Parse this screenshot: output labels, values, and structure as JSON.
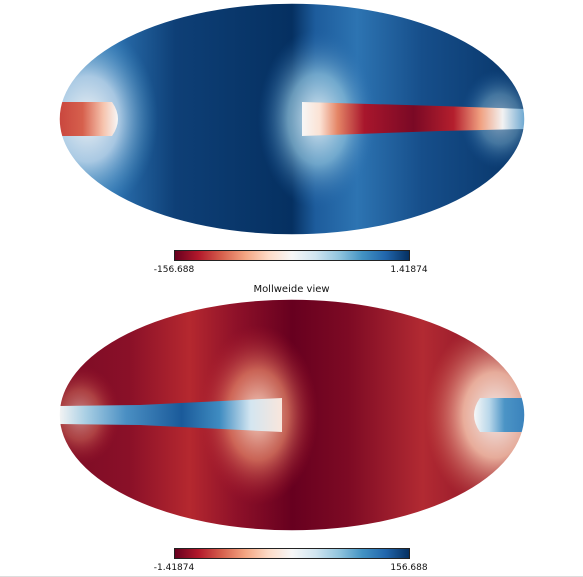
{
  "maps": [
    {
      "id": "top",
      "title": "",
      "colorbar": {
        "min_label": "-156.688",
        "max_label": "1.41874"
      }
    },
    {
      "id": "bottom",
      "title": "Mollweide view",
      "colorbar": {
        "min_label": "-1.41874",
        "max_label": "156.688"
      }
    }
  ],
  "colormap": {
    "name": "RdBu",
    "stops": [
      "#67001f",
      "#b2182b",
      "#d6604d",
      "#f4a582",
      "#fddbc7",
      "#f7f7f7",
      "#d1e5f0",
      "#92c5de",
      "#4393c3",
      "#2166ac",
      "#053061"
    ]
  }
}
